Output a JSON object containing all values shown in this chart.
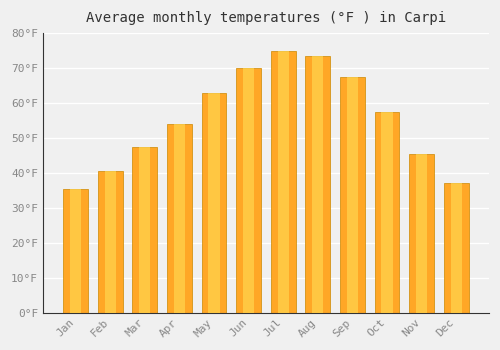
{
  "title": "Average monthly temperatures (°F ) in Carpi",
  "months": [
    "Jan",
    "Feb",
    "Mar",
    "Apr",
    "May",
    "Jun",
    "Jul",
    "Aug",
    "Sep",
    "Oct",
    "Nov",
    "Dec"
  ],
  "values": [
    35.5,
    40.5,
    47.5,
    54.0,
    63.0,
    70.0,
    75.0,
    73.5,
    67.5,
    57.5,
    45.5,
    37.0
  ],
  "bar_color": "#FFA726",
  "bar_highlight": "#FFD54F",
  "bar_edge_color": "#CC8800",
  "background_color": "#f0f0f0",
  "grid_color": "#ffffff",
  "ylim": [
    0,
    80
  ],
  "yticks": [
    0,
    10,
    20,
    30,
    40,
    50,
    60,
    70,
    80
  ],
  "ytick_labels": [
    "0°F",
    "10°F",
    "20°F",
    "30°F",
    "40°F",
    "50°F",
    "60°F",
    "70°F",
    "80°F"
  ],
  "title_fontsize": 10,
  "tick_fontsize": 8,
  "tick_font_color": "#888888",
  "font_family": "monospace",
  "title_color": "#333333"
}
